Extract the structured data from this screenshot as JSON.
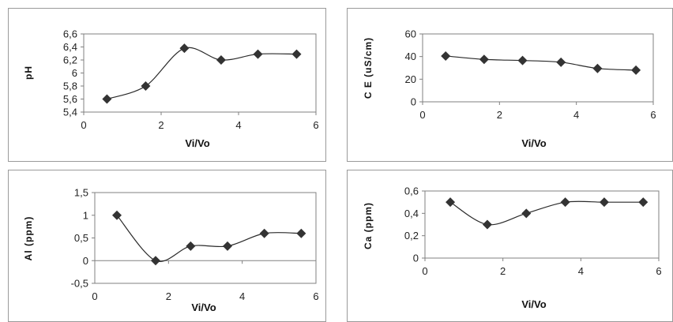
{
  "chart_data": [
    {
      "type": "line",
      "title": "",
      "xlabel": "Vi/Vo",
      "ylabel": "pH",
      "xlim": [
        0,
        6
      ],
      "ylim": [
        5.4,
        6.6
      ],
      "x_ticks": [
        "0",
        "2",
        "4",
        "6"
      ],
      "y_ticks": [
        "5,4",
        "5,6",
        "5,8",
        "6",
        "6,2",
        "6,4",
        "6,6"
      ],
      "series": [
        {
          "x": [
            0.6,
            1.6,
            2.6,
            3.55,
            4.5,
            5.5
          ],
          "y": [
            5.6,
            5.8,
            6.38,
            6.2,
            6.29,
            6.29
          ]
        }
      ]
    },
    {
      "type": "line",
      "title": "",
      "xlabel": "Vi/Vo",
      "ylabel": "C E  (uS/cm)",
      "xlim": [
        0,
        6
      ],
      "ylim": [
        0,
        60
      ],
      "x_ticks": [
        "0",
        "2",
        "4",
        "6"
      ],
      "y_ticks": [
        "0",
        "20",
        "40",
        "60"
      ],
      "series": [
        {
          "x": [
            0.6,
            1.6,
            2.6,
            3.6,
            4.55,
            5.55
          ],
          "y": [
            40.5,
            37.5,
            36.5,
            35,
            29.5,
            28
          ]
        }
      ]
    },
    {
      "type": "line",
      "title": "",
      "xlabel": "Vi/Vo",
      "ylabel": "Al (ppm)",
      "xlim": [
        0,
        6
      ],
      "ylim": [
        -0.5,
        1.5
      ],
      "x_ticks": [
        "0",
        "2",
        "4",
        "6"
      ],
      "y_ticks": [
        "-0,5",
        "0",
        "0,5",
        "1",
        "1,5"
      ],
      "series": [
        {
          "x": [
            0.6,
            1.65,
            2.6,
            3.6,
            4.6,
            5.6
          ],
          "y": [
            1.0,
            0.0,
            0.32,
            0.32,
            0.6,
            0.6
          ]
        }
      ]
    },
    {
      "type": "line",
      "title": "",
      "xlabel": "Vi/Vo",
      "ylabel": "Ca (ppm)",
      "xlim": [
        0,
        6
      ],
      "ylim": [
        0,
        0.6
      ],
      "x_ticks": [
        "0",
        "2",
        "4",
        "6"
      ],
      "y_ticks": [
        "0",
        "0,2",
        "0,4",
        "0,6"
      ],
      "series": [
        {
          "x": [
            0.65,
            1.6,
            2.6,
            3.6,
            4.6,
            5.6
          ],
          "y": [
            0.5,
            0.3,
            0.4,
            0.5,
            0.5,
            0.5
          ]
        }
      ]
    }
  ]
}
